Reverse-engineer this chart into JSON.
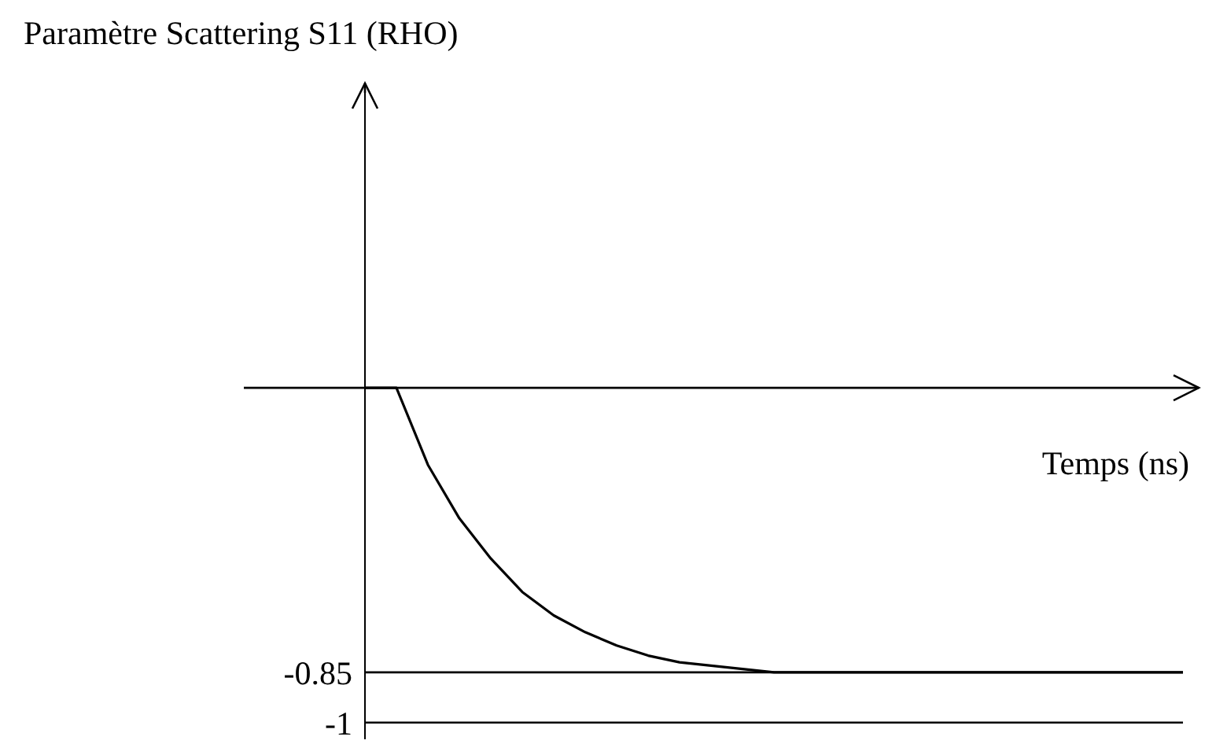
{
  "chart_data": {
    "type": "line",
    "ylabel": "Paramètre Scattering S11 (RHO)",
    "xlabel": "Temps (ns)",
    "categories": [
      null,
      null,
      null,
      null,
      null,
      null,
      null,
      null,
      null,
      null,
      null,
      null,
      null,
      null,
      null,
      null,
      null,
      null,
      null,
      null,
      null,
      null,
      null,
      null,
      null,
      null,
      null
    ],
    "series": [
      {
        "color": "#000000",
        "values": [
          0,
          0,
          -0.23,
          -0.39,
          -0.51,
          -0.61,
          -0.68,
          -0.73,
          -0.77,
          -0.8,
          -0.82,
          -0.83,
          -0.84,
          -0.85,
          -0.85,
          -0.85,
          -0.85,
          -0.85,
          -0.85,
          -0.85,
          -0.85,
          -0.85,
          -0.85,
          -0.85,
          -0.85,
          -0.85,
          -0.85
        ]
      }
    ],
    "ylim": [
      -1.05,
      0.9
    ],
    "yticks": [
      -1,
      -0.85
    ],
    "ref_lines": [
      {
        "axis": "y",
        "value": -0.85,
        "color": "#000000"
      },
      {
        "axis": "y",
        "value": -1,
        "color": "#000000"
      }
    ],
    "marker": "none",
    "line_style": "solid",
    "grid": false,
    "legend": false
  }
}
